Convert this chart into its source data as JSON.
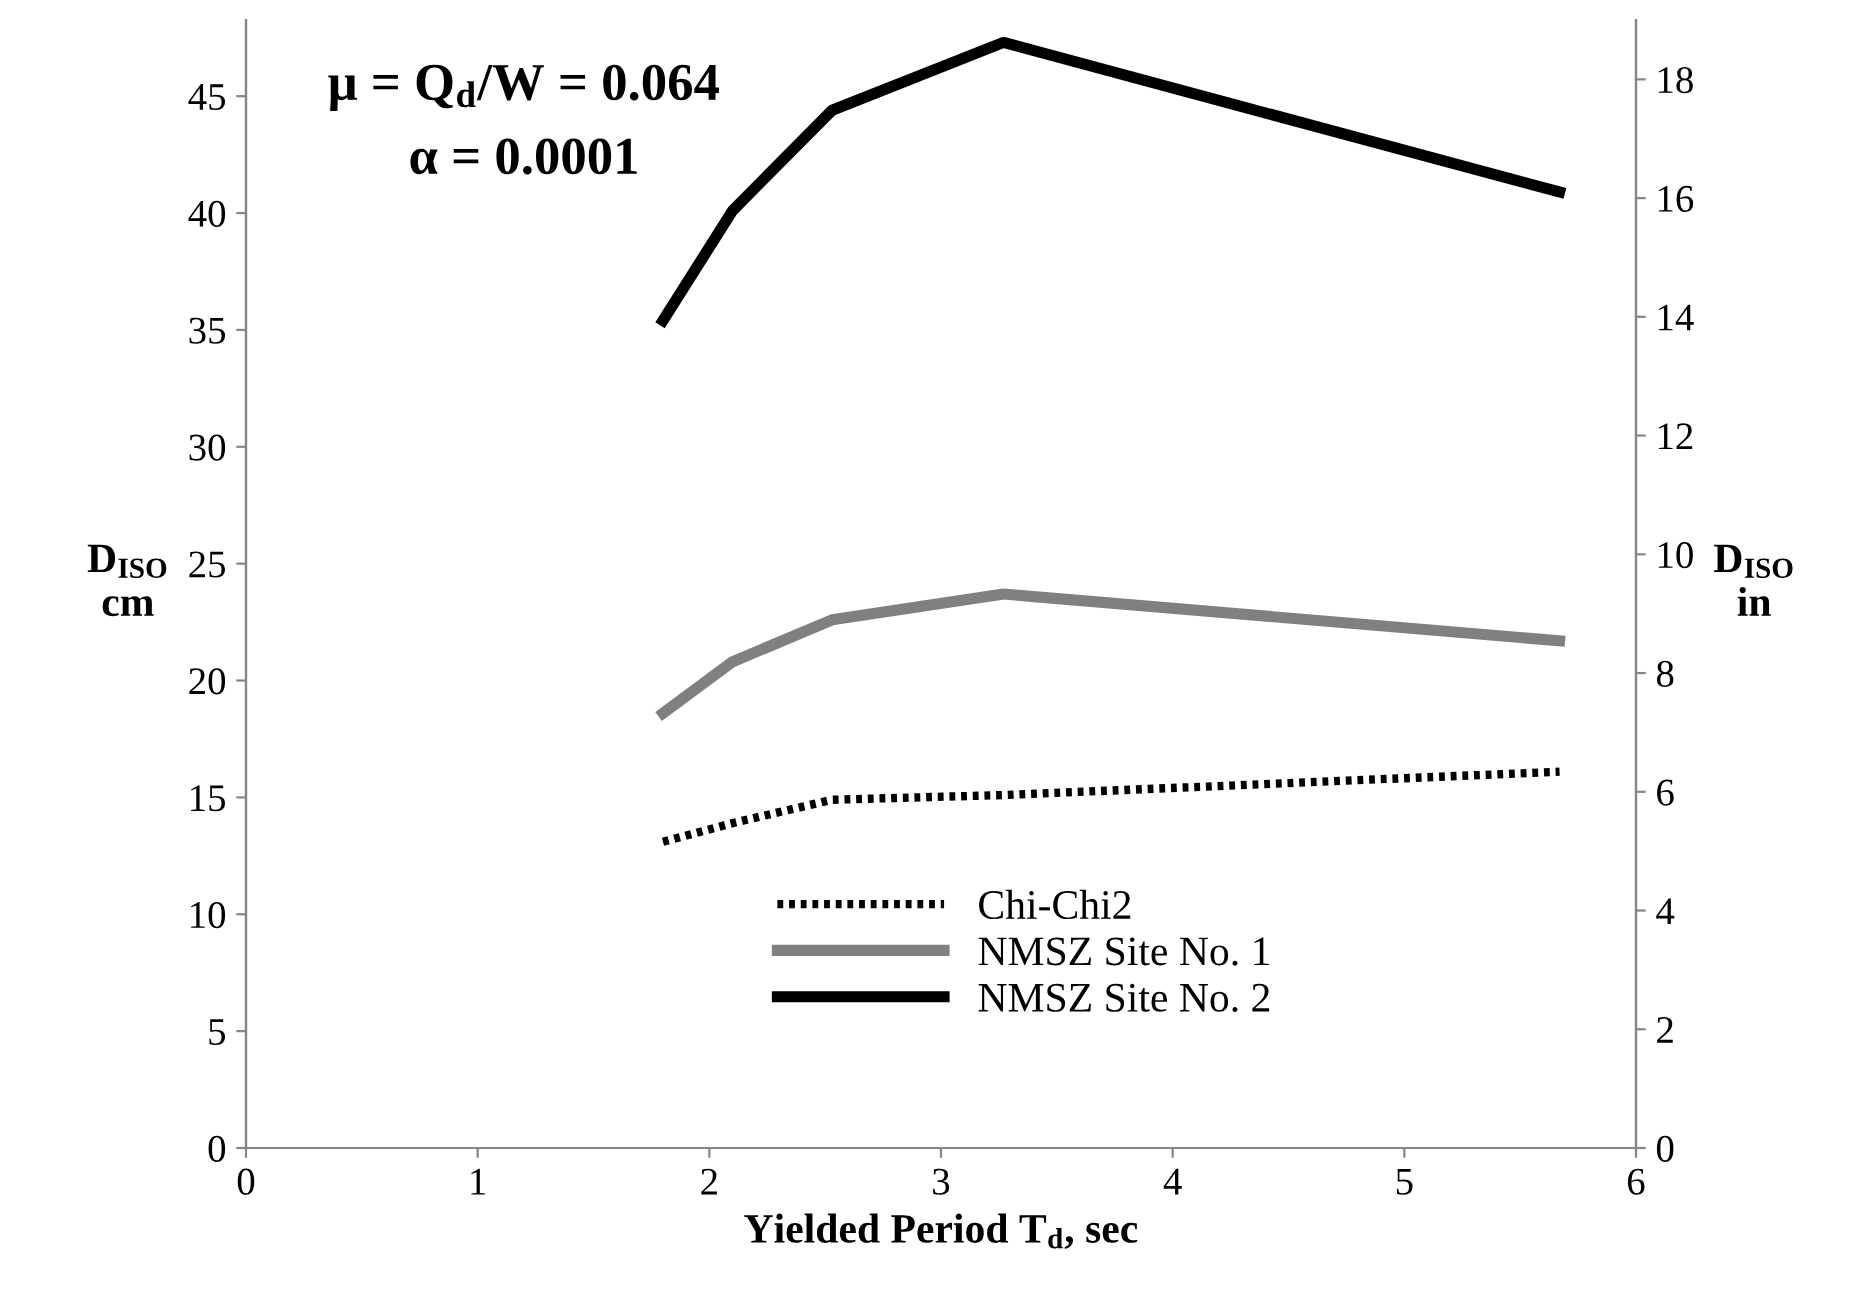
{
  "chart_data": {
    "type": "line",
    "xlabel": "Yielded Period T$_{d}$, sec",
    "ylabel": "D$_{ISO}$\ncm",
    "y2label": "D$_{ISO}$\nin",
    "annotations": [
      "μ = Q$_{d}$/W = 0.064",
      "α = 0.0001"
    ],
    "x": [
      1.8,
      2.1,
      2.53,
      3.27,
      5.67
    ],
    "series": [
      {
        "name": "Chi-Chi2",
        "color": "#000000",
        "line_style": "dotted",
        "values": [
          13.1,
          13.9,
          14.9,
          15.1,
          16.1
        ]
      },
      {
        "name": "NMSZ Site No. 1",
        "color": "#808080",
        "line_style": "solid",
        "values": [
          18.6,
          20.8,
          22.6,
          23.7,
          21.7
        ]
      },
      {
        "name": "NMSZ Site No. 2",
        "color": "#000000",
        "line_style": "solid",
        "values": [
          35.4,
          40.1,
          44.4,
          47.3,
          40.9
        ]
      }
    ],
    "xlim": [
      0,
      6
    ],
    "xticks": [
      0,
      1,
      2,
      3,
      4,
      5,
      6
    ],
    "ylim": [
      0,
      48.26
    ],
    "yticks": [
      0,
      5,
      10,
      15,
      20,
      25,
      30,
      35,
      40,
      45
    ],
    "y2lim": [
      0,
      19
    ],
    "y2ticks": [
      0,
      2,
      4,
      6,
      8,
      10,
      12,
      14,
      16,
      18
    ],
    "grid": false,
    "legend": "bottom",
    "marker": "none"
  }
}
